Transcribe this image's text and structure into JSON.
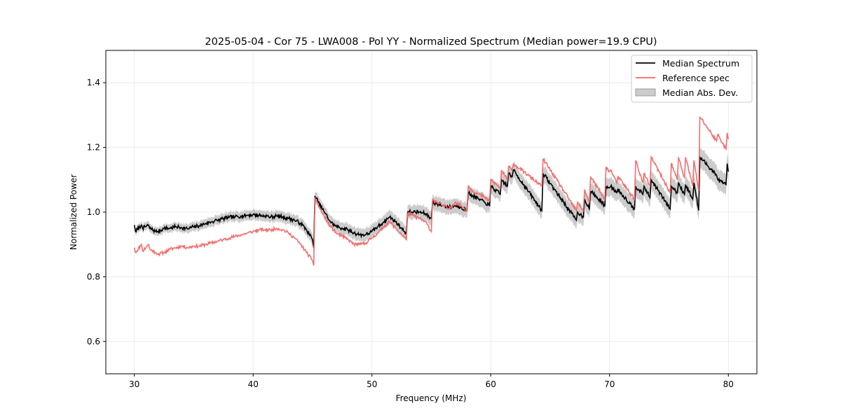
{
  "chart_data": {
    "type": "line",
    "title": "2025-05-04 - Cor 75 - LWA008 - Pol YY - Normalized Spectrum (Median power=19.9 CPU)",
    "xlabel": "Frequency (MHz)",
    "ylabel": "Normalized Power",
    "xlim": [
      27.6,
      82.4
    ],
    "ylim": [
      0.5,
      1.5
    ],
    "xticks": [
      30,
      40,
      50,
      60,
      70,
      80
    ],
    "yticks": [
      0.6,
      0.8,
      1.0,
      1.2,
      1.4
    ],
    "xtick_labels": [
      "30",
      "40",
      "50",
      "60",
      "70",
      "80"
    ],
    "ytick_labels": [
      "0.6",
      "0.8",
      "1.0",
      "1.2",
      "1.4"
    ],
    "grid": true,
    "legend_position": "top-right",
    "series": [
      {
        "name": "Median Spectrum",
        "color": "#000000",
        "x": [
          30.0,
          30.1,
          30.6,
          30.7,
          31.2,
          31.3,
          31.8,
          32.0,
          32.5,
          33.0,
          33.5,
          34.0,
          34.5,
          35.0,
          35.5,
          36.0,
          36.5,
          37.0,
          37.5,
          38.0,
          38.5,
          39.0,
          39.5,
          40.0,
          40.5,
          41.0,
          41.5,
          42.0,
          42.5,
          43.0,
          43.5,
          44.0,
          44.5,
          45.0,
          45.1,
          45.2,
          45.5,
          46.0,
          46.5,
          47.0,
          47.5,
          48.0,
          48.5,
          49.0,
          49.5,
          50.0,
          50.5,
          51.0,
          51.5,
          52.0,
          52.5,
          52.9,
          53.0,
          53.5,
          54.0,
          54.5,
          55.0,
          55.1,
          55.5,
          56.0,
          56.5,
          57.0,
          57.5,
          58.0,
          58.1,
          58.5,
          59.0,
          59.5,
          59.9,
          60.0,
          60.8,
          60.9,
          61.4,
          61.5,
          61.8,
          61.9,
          64.3,
          64.4,
          67.2,
          67.3,
          67.8,
          67.9,
          68.3,
          68.4,
          69.6,
          69.7,
          70.0,
          70.1,
          70.6,
          70.7,
          72.1,
          72.2,
          72.8,
          72.9,
          73.4,
          73.5,
          75.1,
          75.2,
          75.7,
          75.8,
          76.3,
          76.4,
          77.0,
          77.1,
          77.5,
          77.6,
          79.0,
          79.1,
          79.8,
          79.9,
          80.0
        ],
        "values": [
          0.96,
          0.94,
          0.96,
          0.95,
          0.96,
          0.95,
          0.94,
          0.94,
          0.95,
          0.95,
          0.955,
          0.952,
          0.948,
          0.955,
          0.958,
          0.965,
          0.97,
          0.975,
          0.98,
          0.984,
          0.985,
          0.988,
          0.99,
          0.992,
          0.99,
          0.988,
          0.985,
          0.988,
          0.985,
          0.98,
          0.975,
          0.965,
          0.945,
          0.915,
          0.89,
          1.05,
          1.03,
          1.0,
          0.97,
          0.955,
          0.95,
          0.945,
          0.935,
          0.93,
          0.93,
          0.94,
          0.955,
          0.97,
          0.985,
          0.97,
          0.95,
          0.935,
          1.0,
          1.0,
          1.0,
          0.995,
          0.98,
          1.03,
          1.025,
          1.02,
          1.015,
          1.02,
          1.015,
          1.005,
          1.06,
          1.05,
          1.04,
          1.03,
          1.02,
          1.08,
          1.055,
          1.1,
          1.08,
          1.12,
          1.11,
          1.13,
          1.005,
          1.12,
          0.975,
          1.0,
          0.985,
          1.04,
          1.01,
          1.065,
          1.02,
          1.08,
          1.075,
          1.08,
          1.06,
          1.07,
          1.01,
          1.08,
          1.055,
          1.08,
          1.045,
          1.1,
          1.01,
          1.08,
          1.06,
          1.09,
          1.055,
          1.085,
          1.04,
          1.09,
          1.005,
          1.17,
          1.115,
          1.1,
          1.085,
          1.15,
          1.125
        ],
        "notes": "Values are approximate and read from the plot; fine-scale jitter is added in rendering."
      },
      {
        "name": "Reference spec",
        "color": "#f26666",
        "x": [
          30.0,
          30.1,
          30.6,
          30.7,
          31.2,
          31.3,
          31.8,
          32.0,
          32.5,
          33.0,
          33.5,
          34.0,
          34.5,
          35.0,
          35.5,
          36.0,
          36.5,
          37.0,
          37.5,
          38.0,
          38.5,
          39.0,
          39.5,
          40.0,
          40.5,
          41.0,
          41.5,
          42.0,
          42.5,
          43.0,
          43.5,
          44.0,
          44.5,
          45.0,
          45.1,
          45.2,
          45.5,
          46.0,
          46.5,
          47.0,
          47.5,
          48.0,
          48.5,
          49.0,
          49.5,
          50.0,
          50.5,
          51.0,
          51.5,
          52.0,
          52.5,
          52.9,
          53.0,
          53.5,
          54.0,
          54.5,
          55.0,
          55.1,
          55.5,
          56.0,
          56.5,
          57.0,
          57.5,
          58.0,
          58.1,
          58.5,
          59.0,
          59.5,
          59.9,
          60.0,
          60.8,
          60.9,
          61.4,
          61.5,
          61.8,
          61.9,
          64.3,
          64.4,
          67.2,
          67.3,
          67.8,
          67.9,
          68.3,
          68.4,
          69.6,
          69.7,
          70.0,
          70.1,
          70.6,
          70.7,
          72.1,
          72.2,
          72.8,
          72.9,
          73.4,
          73.5,
          75.1,
          75.2,
          75.7,
          75.8,
          76.3,
          76.4,
          77.0,
          77.1,
          77.5,
          77.6,
          79.0,
          79.1,
          79.8,
          79.9,
          80.0
        ],
        "values": [
          0.89,
          0.875,
          0.9,
          0.88,
          0.9,
          0.885,
          0.875,
          0.87,
          0.875,
          0.885,
          0.89,
          0.895,
          0.89,
          0.895,
          0.895,
          0.9,
          0.905,
          0.91,
          0.915,
          0.92,
          0.925,
          0.93,
          0.935,
          0.94,
          0.945,
          0.945,
          0.945,
          0.95,
          0.945,
          0.935,
          0.92,
          0.9,
          0.875,
          0.85,
          0.835,
          1.045,
          1.02,
          0.985,
          0.955,
          0.935,
          0.925,
          0.915,
          0.9,
          0.9,
          0.905,
          0.92,
          0.935,
          0.955,
          0.97,
          0.95,
          0.93,
          0.915,
          0.995,
          0.99,
          0.98,
          0.97,
          0.94,
          1.04,
          1.03,
          1.02,
          1.01,
          1.03,
          1.02,
          1.005,
          1.08,
          1.065,
          1.055,
          1.045,
          1.035,
          1.1,
          1.075,
          1.13,
          1.1,
          1.14,
          1.13,
          1.15,
          1.08,
          1.165,
          1.005,
          1.03,
          1.005,
          1.07,
          1.03,
          1.11,
          1.04,
          1.14,
          1.125,
          1.13,
          1.09,
          1.11,
          1.04,
          1.16,
          1.09,
          1.12,
          1.08,
          1.17,
          1.06,
          1.15,
          1.1,
          1.17,
          1.105,
          1.17,
          1.08,
          1.16,
          1.065,
          1.295,
          1.22,
          1.24,
          1.195,
          1.245,
          1.225
        ],
        "notes": "Values are approximate and read from the plot; fine-scale jitter is added in rendering."
      }
    ],
    "band": {
      "name": "Median Abs. Dev.",
      "color": "#bfbfbf",
      "opacity": 0.8,
      "description": "Shaded band around the Median Spectrum; width increases slightly with frequency.",
      "half_width_low": 0.012,
      "half_width_high": 0.032
    }
  }
}
